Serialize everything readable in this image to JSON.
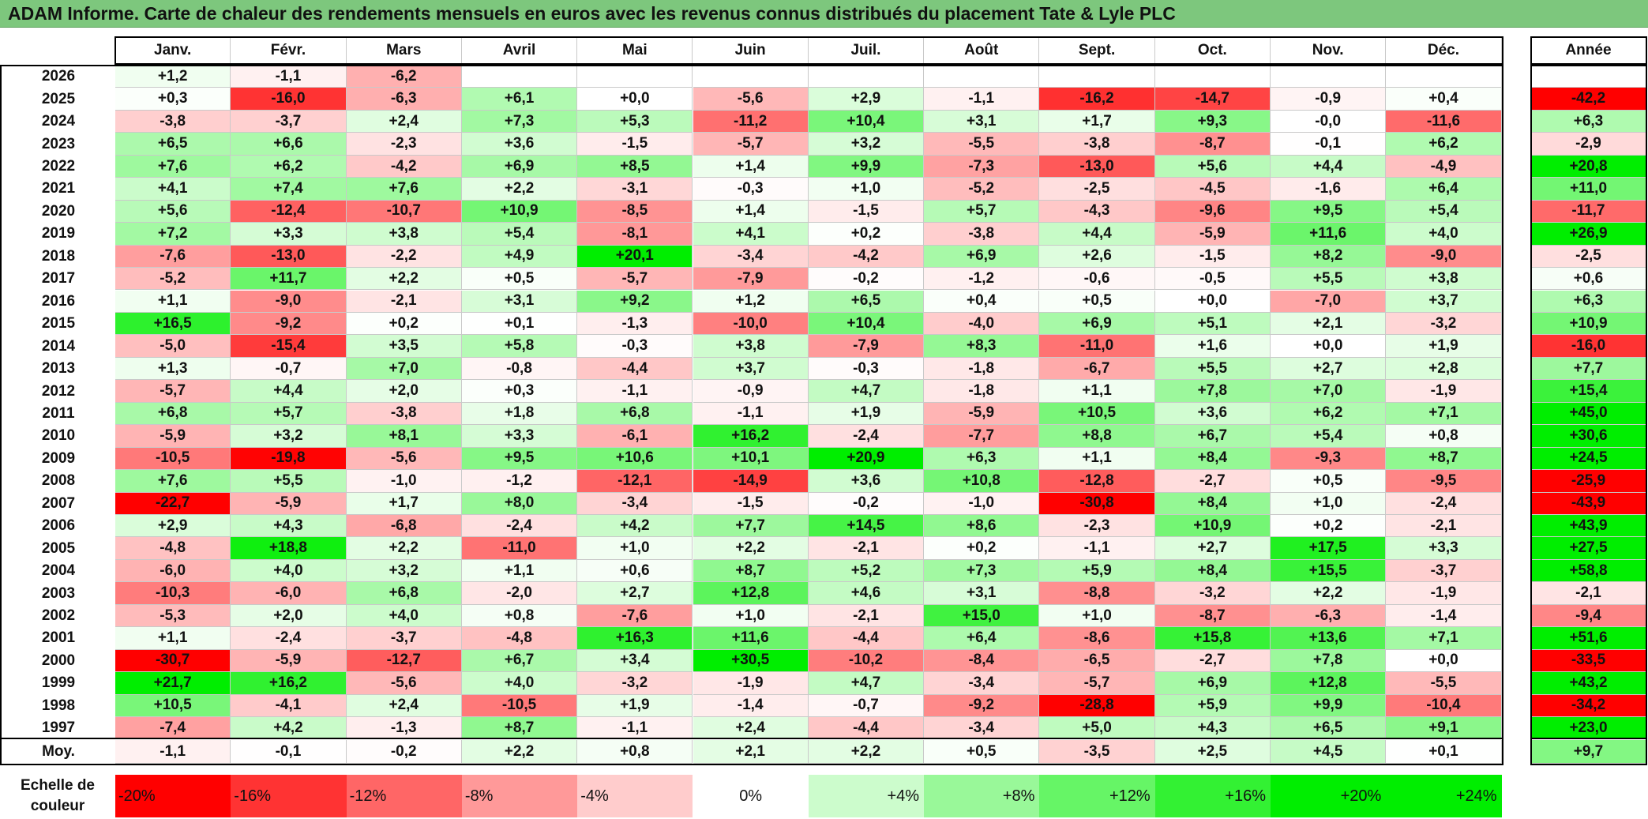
{
  "title": "ADAM Informe. Carte de chaleur des rendements mensuels en euros avec les revenus connus distribués du placement Tate & Lyle PLC",
  "months": [
    "Janv.",
    "Févr.",
    "Mars",
    "Avril",
    "Mai",
    "Juin",
    "Juil.",
    "Août",
    "Sept.",
    "Oct.",
    "Nov.",
    "Déc."
  ],
  "year_header": "Année",
  "average_label": "Moy.",
  "scale_label": "Echelle de couleur",
  "scale": [
    "-20%",
    "-16%",
    "-12%",
    "-8%",
    "-4%",
    "0%",
    "+4%",
    "+8%",
    "+12%",
    "+16%",
    "+20%",
    "+24%"
  ],
  "colors": {
    "title_bg": "#7dc77d",
    "negative_max": "#ff0000",
    "neutral": "#ffffff",
    "positive_max": "#00ee00"
  },
  "chart_data": {
    "type": "heatmap",
    "title": "ADAM Informe. Carte de chaleur des rendements mensuels en euros avec les revenus connus distribués du placement Tate & Lyle PLC",
    "x_categories": [
      "Janv.",
      "Févr.",
      "Mars",
      "Avril",
      "Mai",
      "Juin",
      "Juil.",
      "Août",
      "Sept.",
      "Oct.",
      "Nov.",
      "Déc."
    ],
    "rows": [
      {
        "year": "2026",
        "values": [
          "+1,2",
          "-1,1",
          "-6,2",
          "",
          "",
          "",
          "",
          "",
          "",
          "",
          "",
          ""
        ],
        "annual": ""
      },
      {
        "year": "2025",
        "values": [
          "+0,3",
          "-16,0",
          "-6,3",
          "+6,1",
          "+0,0",
          "-5,6",
          "+2,9",
          "-1,1",
          "-16,2",
          "-14,7",
          "-0,9",
          "+0,4"
        ],
        "annual": "-42,2"
      },
      {
        "year": "2024",
        "values": [
          "-3,8",
          "-3,7",
          "+2,4",
          "+7,3",
          "+5,3",
          "-11,2",
          "+10,4",
          "+3,1",
          "+1,7",
          "+9,3",
          "-0,0",
          "-11,6"
        ],
        "annual": "+6,3"
      },
      {
        "year": "2023",
        "values": [
          "+6,5",
          "+6,6",
          "-2,3",
          "+3,6",
          "-1,5",
          "-5,7",
          "+3,2",
          "-5,5",
          "-3,8",
          "-8,7",
          "-0,1",
          "+6,2"
        ],
        "annual": "-2,9"
      },
      {
        "year": "2022",
        "values": [
          "+7,6",
          "+6,2",
          "-4,2",
          "+6,9",
          "+8,5",
          "+1,4",
          "+9,9",
          "-7,3",
          "-13,0",
          "+5,6",
          "+4,4",
          "-4,9"
        ],
        "annual": "+20,8"
      },
      {
        "year": "2021",
        "values": [
          "+4,1",
          "+7,4",
          "+7,6",
          "+2,2",
          "-3,1",
          "-0,3",
          "+1,0",
          "-5,2",
          "-2,5",
          "-4,5",
          "-1,6",
          "+6,4"
        ],
        "annual": "+11,0"
      },
      {
        "year": "2020",
        "values": [
          "+5,6",
          "-12,4",
          "-10,7",
          "+10,9",
          "-8,5",
          "+1,4",
          "-1,5",
          "+5,7",
          "-4,3",
          "-9,6",
          "+9,5",
          "+5,4"
        ],
        "annual": "-11,7"
      },
      {
        "year": "2019",
        "values": [
          "+7,2",
          "+3,3",
          "+3,8",
          "+5,4",
          "-8,1",
          "+4,1",
          "+0,2",
          "-3,8",
          "+4,4",
          "-5,9",
          "+11,6",
          "+4,0"
        ],
        "annual": "+26,9"
      },
      {
        "year": "2018",
        "values": [
          "-7,6",
          "-13,0",
          "-2,2",
          "+4,9",
          "+20,1",
          "-3,4",
          "-4,2",
          "+6,9",
          "+2,6",
          "-1,5",
          "+8,2",
          "-9,0"
        ],
        "annual": "-2,5"
      },
      {
        "year": "2017",
        "values": [
          "-5,2",
          "+11,7",
          "+2,2",
          "+0,5",
          "-5,7",
          "-7,9",
          "-0,2",
          "-1,2",
          "-0,6",
          "-0,5",
          "+5,5",
          "+3,8"
        ],
        "annual": "+0,6"
      },
      {
        "year": "2016",
        "values": [
          "+1,1",
          "-9,0",
          "-2,1",
          "+3,1",
          "+9,2",
          "+1,2",
          "+6,5",
          "+0,4",
          "+0,5",
          "+0,0",
          "-7,0",
          "+3,7"
        ],
        "annual": "+6,3"
      },
      {
        "year": "2015",
        "values": [
          "+16,5",
          "-9,2",
          "+0,2",
          "+0,1",
          "-1,3",
          "-10,0",
          "+10,4",
          "-4,0",
          "+6,9",
          "+5,1",
          "+2,1",
          "-3,2"
        ],
        "annual": "+10,9"
      },
      {
        "year": "2014",
        "values": [
          "-5,0",
          "-15,4",
          "+3,5",
          "+5,8",
          "-0,3",
          "+3,8",
          "-7,9",
          "+8,3",
          "-11,0",
          "+1,6",
          "+0,0",
          "+1,9"
        ],
        "annual": "-16,0"
      },
      {
        "year": "2013",
        "values": [
          "+1,3",
          "-0,7",
          "+7,0",
          "-0,8",
          "-4,4",
          "+3,7",
          "-0,3",
          "-1,8",
          "-6,7",
          "+5,5",
          "+2,7",
          "+2,8"
        ],
        "annual": "+7,7"
      },
      {
        "year": "2012",
        "values": [
          "-5,7",
          "+4,4",
          "+2,0",
          "+0,3",
          "-1,1",
          "-0,9",
          "+4,7",
          "-1,8",
          "+1,1",
          "+7,8",
          "+7,0",
          "-1,9"
        ],
        "annual": "+15,4"
      },
      {
        "year": "2011",
        "values": [
          "+6,8",
          "+5,7",
          "-3,8",
          "+1,8",
          "+6,8",
          "-1,1",
          "+1,9",
          "-5,9",
          "+10,5",
          "+3,6",
          "+6,2",
          "+7,1"
        ],
        "annual": "+45,0"
      },
      {
        "year": "2010",
        "values": [
          "-5,9",
          "+3,2",
          "+8,1",
          "+3,3",
          "-6,1",
          "+16,2",
          "-2,4",
          "-7,7",
          "+8,8",
          "+6,7",
          "+5,4",
          "+0,8"
        ],
        "annual": "+30,6"
      },
      {
        "year": "2009",
        "values": [
          "-10,5",
          "-19,8",
          "-5,6",
          "+9,5",
          "+10,6",
          "+10,1",
          "+20,9",
          "+6,3",
          "+1,1",
          "+8,4",
          "-9,3",
          "+8,7"
        ],
        "annual": "+24,5"
      },
      {
        "year": "2008",
        "values": [
          "+7,6",
          "+5,5",
          "-1,0",
          "-1,2",
          "-12,1",
          "-14,9",
          "+3,6",
          "+10,8",
          "-12,8",
          "-2,7",
          "+0,5",
          "-9,5"
        ],
        "annual": "-25,9"
      },
      {
        "year": "2007",
        "values": [
          "-22,7",
          "-5,9",
          "+1,7",
          "+8,0",
          "-3,4",
          "-1,5",
          "-0,2",
          "-1,0",
          "-30,8",
          "+8,4",
          "+1,0",
          "-2,4"
        ],
        "annual": "-43,9"
      },
      {
        "year": "2006",
        "values": [
          "+2,9",
          "+4,3",
          "-6,8",
          "-2,4",
          "+4,2",
          "+7,7",
          "+14,5",
          "+8,6",
          "-2,3",
          "+10,9",
          "+0,2",
          "-2,1"
        ],
        "annual": "+43,9"
      },
      {
        "year": "2005",
        "values": [
          "-4,8",
          "+18,8",
          "+2,2",
          "-11,0",
          "+1,0",
          "+2,2",
          "-2,1",
          "+0,2",
          "-1,1",
          "+2,7",
          "+17,5",
          "+3,3"
        ],
        "annual": "+27,5"
      },
      {
        "year": "2004",
        "values": [
          "-6,0",
          "+4,0",
          "+3,2",
          "+1,1",
          "+0,6",
          "+8,7",
          "+5,2",
          "+7,3",
          "+5,9",
          "+8,4",
          "+15,5",
          "-3,7"
        ],
        "annual": "+58,8"
      },
      {
        "year": "2003",
        "values": [
          "-10,3",
          "-6,0",
          "+6,8",
          "-2,0",
          "+2,7",
          "+12,8",
          "+4,6",
          "+3,1",
          "-8,8",
          "-3,2",
          "+2,2",
          "-1,9"
        ],
        "annual": "-2,1"
      },
      {
        "year": "2002",
        "values": [
          "-5,3",
          "+2,0",
          "+4,0",
          "+0,8",
          "-7,6",
          "+1,0",
          "-2,1",
          "+15,0",
          "+1,0",
          "-8,7",
          "-6,3",
          "-1,4"
        ],
        "annual": "-9,4"
      },
      {
        "year": "2001",
        "values": [
          "+1,1",
          "-2,4",
          "-3,7",
          "-4,8",
          "+16,3",
          "+11,6",
          "-4,4",
          "+6,4",
          "-8,6",
          "+15,8",
          "+13,6",
          "+7,1"
        ],
        "annual": "+51,6"
      },
      {
        "year": "2000",
        "values": [
          "-30,7",
          "-5,9",
          "-12,7",
          "+6,7",
          "+3,4",
          "+30,5",
          "-10,2",
          "-8,4",
          "-6,5",
          "-2,7",
          "+7,8",
          "+0,0"
        ],
        "annual": "-33,5"
      },
      {
        "year": "1999",
        "values": [
          "+21,7",
          "+16,2",
          "-5,6",
          "+4,0",
          "-3,2",
          "-1,9",
          "+4,7",
          "-3,4",
          "-5,7",
          "+6,9",
          "+12,8",
          "-5,5"
        ],
        "annual": "+43,2"
      },
      {
        "year": "1998",
        "values": [
          "+10,5",
          "-4,1",
          "+2,4",
          "-10,5",
          "+1,9",
          "-1,4",
          "-0,7",
          "-9,2",
          "-28,8",
          "+5,9",
          "+9,9",
          "-10,4"
        ],
        "annual": "-34,2"
      },
      {
        "year": "1997",
        "values": [
          "-7,4",
          "+4,2",
          "-1,3",
          "+8,7",
          "-1,1",
          "+2,4",
          "-4,4",
          "-3,4",
          "+5,0",
          "+4,3",
          "+6,5",
          "+9,1"
        ],
        "annual": "+23,0"
      }
    ],
    "averages": [
      "-1,1",
      "-0,1",
      "-0,2",
      "+2,2",
      "+0,8",
      "+2,1",
      "+2,2",
      "+0,5",
      "-3,5",
      "+2,5",
      "+4,5",
      "+0,1"
    ],
    "average_annual": "+9,7",
    "color_scale_range": [
      -20,
      24
    ]
  }
}
